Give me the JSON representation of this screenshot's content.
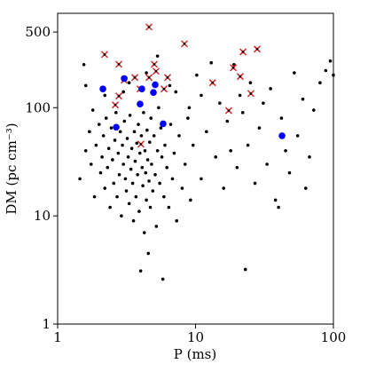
{
  "chart_data": {
    "type": "scatter",
    "x_label": "P (ms)",
    "y_label": "DM (pc cm⁻³)",
    "xscale": "log",
    "yscale": "log",
    "xlim": [
      1,
      100
    ],
    "ylim": [
      1,
      745
    ],
    "xticks": [
      1,
      10,
      100
    ],
    "yticks": [
      1,
      10,
      100,
      500
    ],
    "series": [
      {
        "color": "#000000",
        "marker": "dot",
        "x": [
          1.45,
          1.55,
          1.6,
          1.7,
          1.75,
          1.8,
          1.85,
          1.9,
          2.0,
          2.05,
          2.1,
          2.15,
          2.2,
          2.25,
          2.3,
          2.35,
          2.4,
          2.45,
          2.5,
          2.55,
          2.6,
          2.65,
          2.7,
          2.75,
          2.8,
          2.85,
          2.9,
          2.95,
          3.0,
          3.05,
          3.1,
          3.15,
          3.2,
          3.25,
          3.3,
          3.35,
          3.4,
          3.45,
          3.5,
          3.55,
          3.6,
          3.65,
          3.7,
          3.75,
          3.8,
          3.85,
          3.9,
          3.95,
          4.0,
          4.05,
          4.1,
          4.15,
          4.2,
          4.25,
          4.3,
          4.35,
          4.4,
          4.45,
          4.5,
          4.55,
          4.6,
          4.65,
          4.7,
          4.75,
          4.8,
          4.9,
          5.0,
          5.1,
          5.2,
          5.3,
          5.4,
          5.5,
          5.6,
          5.7,
          5.8,
          5.9,
          6.0,
          6.2,
          6.4,
          6.6,
          6.8,
          7.0,
          7.3,
          7.6,
          8.0,
          8.4,
          8.8,
          9.2,
          9.6,
          10.2,
          11,
          12,
          13,
          14,
          15,
          16,
          17,
          18,
          19,
          20,
          21,
          22,
          23,
          24,
          25,
          27,
          29,
          31,
          33,
          35,
          38,
          40,
          42,
          45,
          48,
          52,
          55,
          60,
          63,
          67,
          72,
          80,
          88,
          95,
          100,
          3.0,
          3.3,
          2.2,
          6.5,
          7.2,
          9.0,
          11,
          1.6,
          4.4,
          5.3
        ],
        "values": [
          22,
          250,
          40,
          60,
          30,
          95,
          15,
          45,
          70,
          25,
          35,
          55,
          18,
          80,
          28,
          42,
          12,
          65,
          33,
          20,
          50,
          90,
          15,
          38,
          24,
          60,
          10,
          45,
          30,
          75,
          22,
          17,
          52,
          35,
          13,
          85,
          27,
          42,
          20,
          9,
          60,
          32,
          15,
          47,
          24,
          70,
          11,
          38,
          3.1,
          55,
          28,
          19,
          90,
          7,
          40,
          25,
          14,
          62,
          33,
          4.5,
          21,
          48,
          12,
          80,
          30,
          17,
          55,
          24,
          8,
          40,
          100,
          20,
          65,
          35,
          2.6,
          15,
          45,
          28,
          12,
          70,
          22,
          38,
          9,
          55,
          18,
          30,
          80,
          14,
          45,
          200,
          22,
          60,
          260,
          35,
          110,
          18,
          75,
          40,
          250,
          28,
          130,
          90,
          3.2,
          45,
          170,
          20,
          65,
          110,
          30,
          150,
          14,
          12,
          80,
          40,
          25,
          210,
          55,
          120,
          18,
          35,
          95,
          170,
          220,
          270,
          200,
          140,
          170,
          130,
          160,
          140,
          100,
          130,
          160,
          210,
          300
        ]
      },
      {
        "color": "#d62728",
        "marker": "cross",
        "x": [
          2.19,
          2.78,
          4.6,
          8.31,
          5.02,
          5.17,
          3.63,
          4.6,
          3.04,
          6.27,
          5.91,
          3.96,
          2.78,
          2.62,
          13.3,
          18.8,
          22.1,
          28.0,
          21.1,
          17.4,
          25.2,
          4.02
        ],
        "values": [
          310,
          252,
          557,
          389,
          252,
          217,
          190,
          190,
          180,
          190,
          149,
          149,
          128,
          106,
          170,
          234,
          328,
          348,
          194,
          94,
          135,
          46
        ]
      },
      {
        "color": "#0000ff",
        "marker": "circle",
        "x": [
          2.13,
          3.04,
          4.08,
          5.1,
          4.95,
          3.96,
          5.82,
          2.66,
          42.4
        ],
        "values": [
          149,
          186,
          149,
          163,
          138,
          108,
          71,
          66,
          55
        ]
      }
    ]
  }
}
